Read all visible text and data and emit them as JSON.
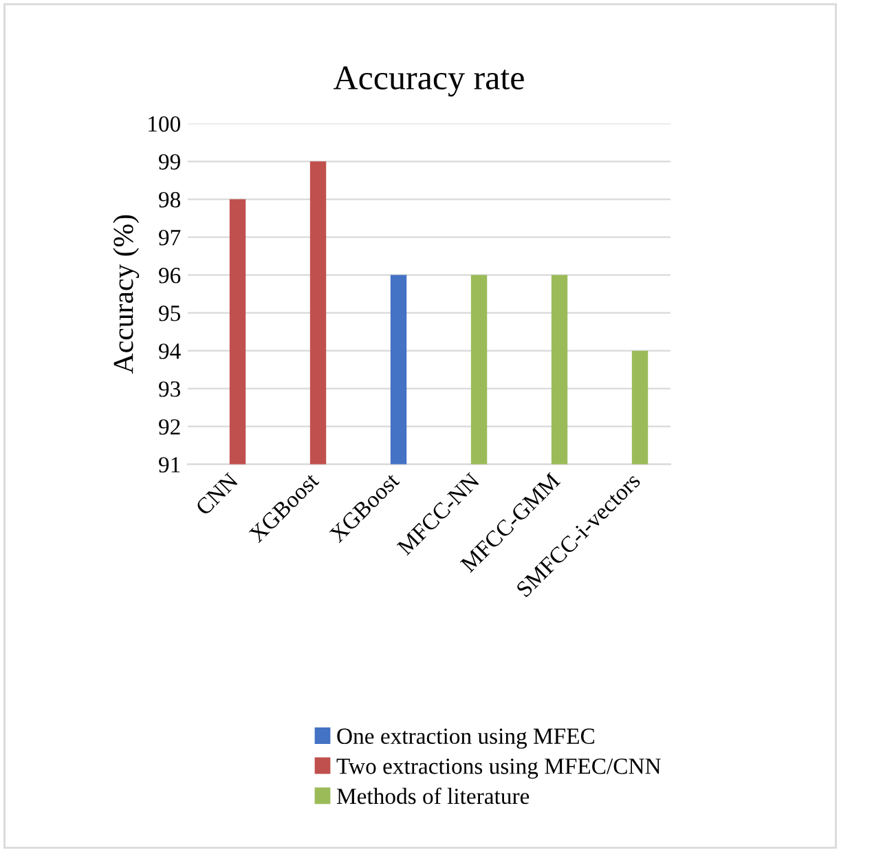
{
  "chart_data": {
    "type": "bar",
    "title": "Accuracy rate",
    "ylabel": "Accuracy (%)",
    "categories": [
      "CNN",
      "XGBoost",
      "XGBoost",
      "MFCC-NN",
      "MFCC-GMM",
      "SMFCC-i-vectors"
    ],
    "series": [
      {
        "name": "One extraction using MFEC",
        "color": "#4472c4",
        "values": [
          null,
          null,
          96,
          null,
          null,
          null
        ]
      },
      {
        "name": "Two extractions using MFEC/CNN",
        "color": "#c0504d",
        "values": [
          98,
          99,
          null,
          null,
          null,
          null
        ]
      },
      {
        "name": "Methods of literature",
        "color": "#9bbb59",
        "values": [
          null,
          null,
          null,
          96,
          96,
          94
        ]
      }
    ],
    "ylim": [
      91,
      100
    ],
    "yticks": [
      91,
      92,
      93,
      94,
      95,
      96,
      97,
      98,
      99,
      100
    ],
    "grid": "y",
    "legend": "bottom"
  }
}
